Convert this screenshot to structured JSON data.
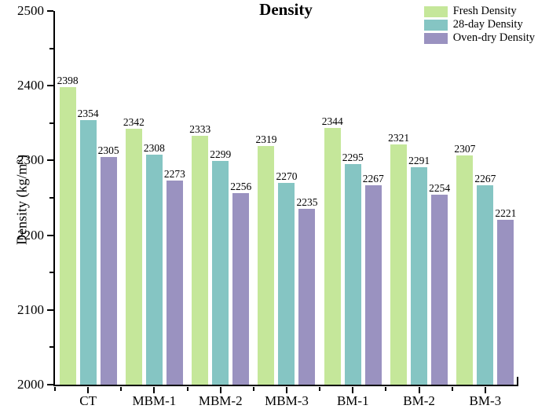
{
  "chart_data": {
    "type": "bar",
    "title": "Density",
    "ylabel": "Density (kg/m³)",
    "xlabel": "",
    "categories": [
      "CT",
      "MBM-1",
      "MBM-2",
      "MBM-3",
      "BM-1",
      "BM-2",
      "BM-3"
    ],
    "series": [
      {
        "name": "Fresh Density",
        "color": "#c5e79a",
        "values": [
          2398,
          2342,
          2333,
          2319,
          2344,
          2321,
          2307
        ]
      },
      {
        "name": "28-day Density",
        "color": "#85c5c3",
        "values": [
          2354,
          2308,
          2299,
          2270,
          2295,
          2291,
          2267
        ]
      },
      {
        "name": "Oven-dry Density",
        "color": "#9a92c0",
        "values": [
          2305,
          2273,
          2256,
          2235,
          2267,
          2254,
          2221
        ]
      }
    ],
    "ylim": [
      2000,
      2500
    ],
    "yticks": [
      2000,
      2100,
      2200,
      2300,
      2400,
      2500
    ],
    "y_minor_step": 50,
    "bar_value_labels": true,
    "grid": false,
    "legend_position": "top-right",
    "axis_color": "#000000",
    "text_color": "#000000"
  }
}
